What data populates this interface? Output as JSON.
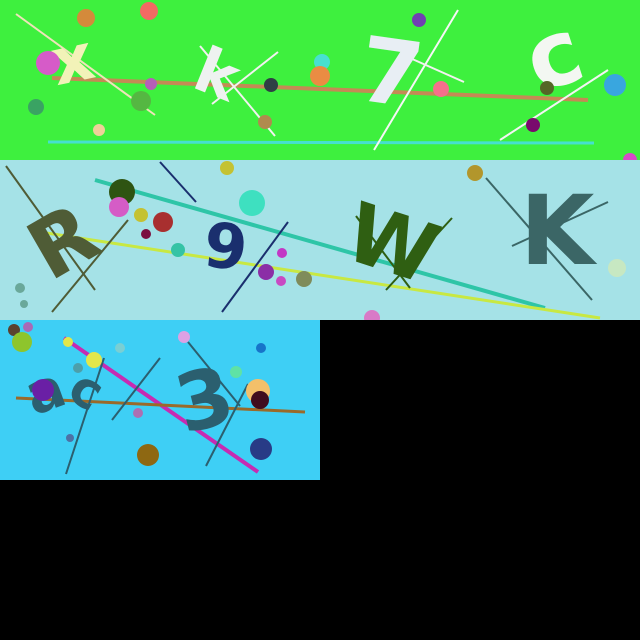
{
  "panels": [
    {
      "id": "captcha-panel-1",
      "background": "#3ef03e",
      "characters": [
        "x",
        "k",
        "7",
        "c"
      ],
      "colors": {
        "x": "#f2f2b8",
        "k": "#eef2f0",
        "7": "#e8eef4",
        "c": "#f3f7f2"
      },
      "line_colors": [
        "#c48a55",
        "#45e0cf",
        "#f6f6f6",
        "#efe3ba"
      ],
      "dot_colors": [
        "#d48a3b",
        "#f26a63",
        "#d65bc8",
        "#3aa363",
        "#55b742",
        "#b65fb8",
        "#f0d099",
        "#1d1f3a",
        "#55aaa1",
        "#ea8c43",
        "#2f3f45",
        "#f56f8c",
        "#556627",
        "#7040b2",
        "#39a6df",
        "#790a6d",
        "#d84bc8"
      ]
    },
    {
      "id": "captcha-panel-2",
      "background": "#a5e2e7",
      "characters": [
        "R",
        "9",
        "W",
        "K"
      ],
      "colors": {
        "R": "#4f5c36",
        "9": "#1a2f6e",
        "W": "#2f5f12",
        "K": "#3b6666"
      },
      "line_colors": [
        "#2ec5a7",
        "#c8e842",
        "#4f5c36",
        "#1a2f6e",
        "#3b6666"
      ],
      "dot_colors": [
        "#2e5412",
        "#d55cc6",
        "#c4c232",
        "#a82f2f",
        "#7b0f3f",
        "#3ee0c0",
        "#a3a33e",
        "#c238c5",
        "#8b2ea6",
        "#c84ac3",
        "#7f8c5b",
        "#c7e8c2",
        "#d87ac7",
        "#b2962c",
        "#6aa89a"
      ]
    },
    {
      "id": "captcha-panel-3",
      "background": "#3ecff5",
      "characters": [
        "a",
        "c",
        "3"
      ],
      "colors": {
        "a": "#2b5f6f",
        "c": "#2b5f6f",
        "3": "#2b5f6f"
      },
      "line_colors": [
        "#c72bb2",
        "#9a6a2a",
        "#2b5f6f"
      ],
      "dot_colors": [
        "#5a4230",
        "#a86ab6",
        "#8ec52c",
        "#e2e74a",
        "#7acfd4",
        "#dca1e4",
        "#1774c9",
        "#6a1fa5",
        "#ac70b2",
        "#f3c06a",
        "#400d1e",
        "#8e6812",
        "#283b86",
        "#4d71a5",
        "#5fe2a6"
      ]
    }
  ]
}
